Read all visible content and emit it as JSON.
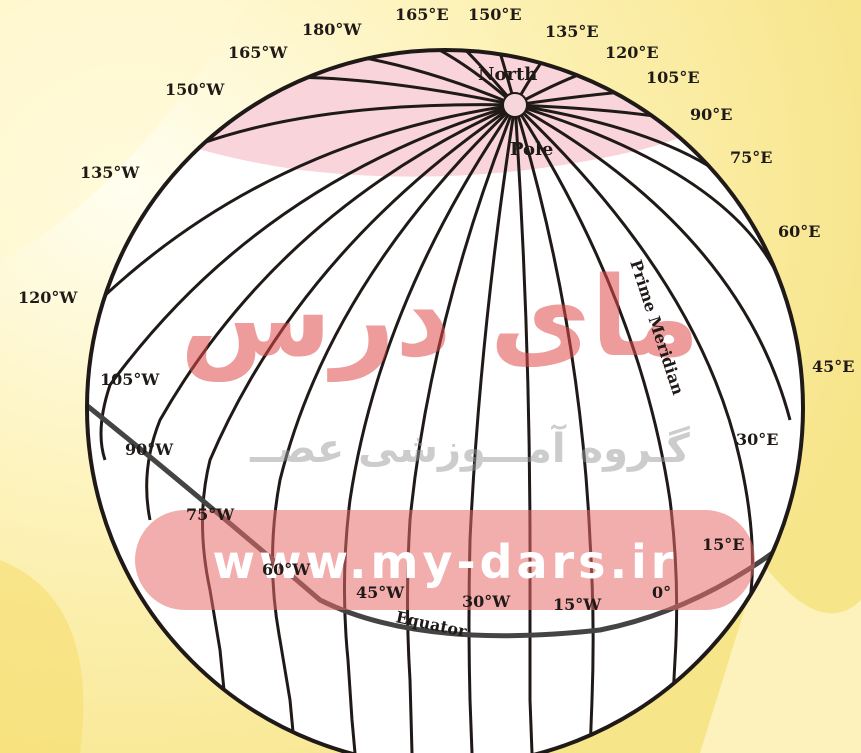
{
  "labels": {
    "north": "North",
    "pole": "Pole",
    "prime_meridian": "Prime Meridian",
    "equator": "Equator"
  },
  "meridian_labels": {
    "w180": "180°W",
    "w165": "165°W",
    "w150": "150°W",
    "w135": "135°W",
    "w120": "120°W",
    "w105": "105°W",
    "w90": "90°W",
    "w75": "75°W",
    "w60": "60°W",
    "w45": "45°W",
    "w30": "30°W",
    "w15": "15°W",
    "zero": "0°",
    "e15": "15°E",
    "e30": "30°E",
    "e45": "45°E",
    "e60": "60°E",
    "e75": "75°E",
    "e90": "90°E",
    "e105": "105°E",
    "e120": "120°E",
    "e135": "135°E",
    "e150": "150°E",
    "e165": "165°E"
  },
  "watermark": {
    "brand_fa": "مای درس",
    "subtitle_fa": "گـروه آمـــوزشی عصــ",
    "url": "www.my-dars.ir"
  },
  "colors": {
    "background": "#fbf6d6",
    "globe_fill": "#ffffff",
    "line": "#1f1a17",
    "watermark_red": "#e04a4a"
  }
}
